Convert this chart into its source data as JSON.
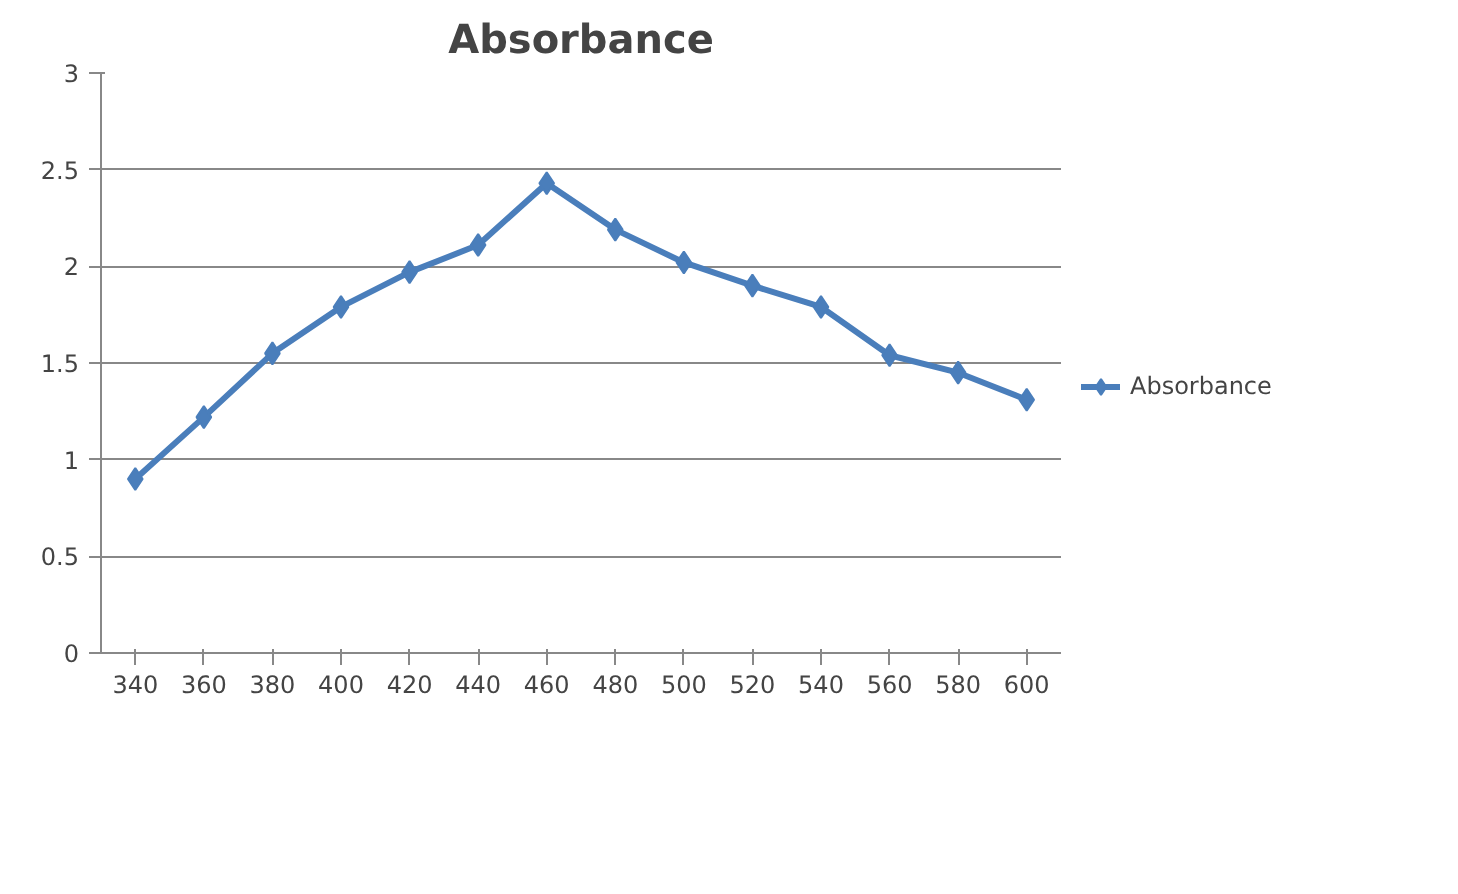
{
  "chart_data": {
    "type": "line",
    "title": "Absorbance",
    "categories": [
      "340",
      "360",
      "380",
      "400",
      "420",
      "440",
      "460",
      "480",
      "500",
      "520",
      "540",
      "560",
      "580",
      "600"
    ],
    "series": [
      {
        "name": "Absorbance",
        "color": "#4a7ebb",
        "values": [
          0.9,
          1.22,
          1.55,
          1.79,
          1.97,
          2.11,
          2.43,
          2.19,
          2.02,
          1.9,
          1.79,
          1.54,
          1.45,
          1.31
        ]
      }
    ],
    "ylim": [
      0,
      3
    ],
    "yticks": [
      0,
      0.5,
      1,
      1.5,
      2,
      2.5,
      3
    ],
    "grid": "y",
    "legend": "right",
    "marker": "diamond",
    "line_style": "solid"
  }
}
